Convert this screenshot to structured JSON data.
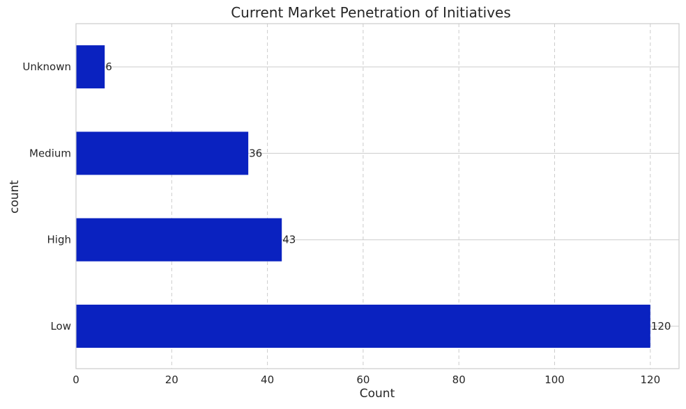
{
  "chart_data": {
    "type": "bar",
    "orientation": "horizontal",
    "title": "Current Market Penetration of Initiatives",
    "xlabel": "Count",
    "ylabel": "count",
    "categories": [
      "Low",
      "High",
      "Medium",
      "Unknown"
    ],
    "values": [
      120,
      43,
      36,
      6
    ],
    "data_labels": [
      "120",
      "43",
      "36",
      "6"
    ],
    "xlim": [
      0,
      126
    ],
    "x_ticks": [
      0,
      20,
      40,
      60,
      80,
      100,
      120
    ],
    "x_tick_labels": [
      "0",
      "20",
      "40",
      "60",
      "80",
      "100",
      "120"
    ],
    "grid": true,
    "colors": {
      "bar": "#0a22c0",
      "grid": "#cccccc",
      "axes": "#cccccc",
      "text": "#262626"
    }
  }
}
